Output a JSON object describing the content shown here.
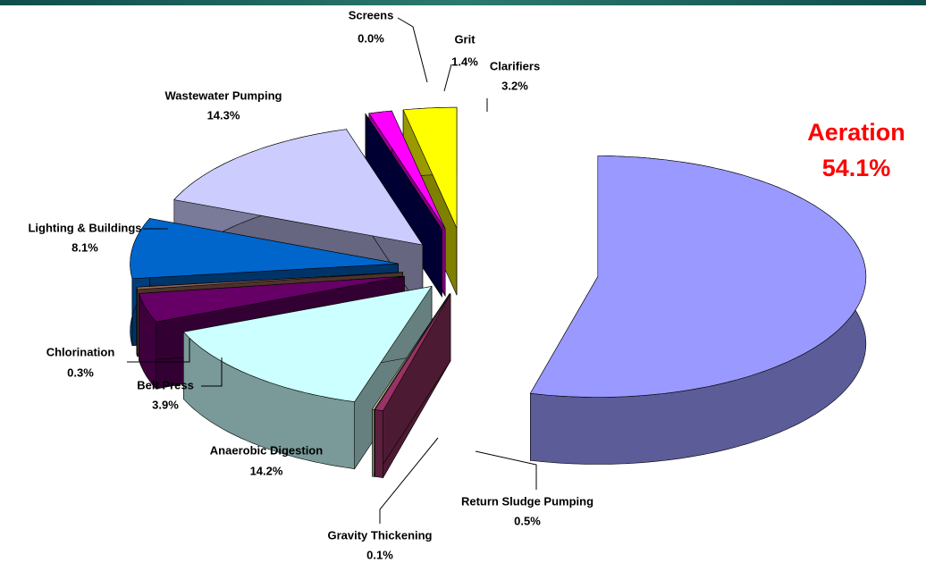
{
  "chart_data": {
    "type": "pie3d",
    "categories": [
      "Aeration",
      "Return Sludge Pumping",
      "Gravity Thickening",
      "Anaerobic Digestion",
      "Belt Press",
      "Chlorination",
      "Lighting & Buildings",
      "Wastewater Pumping",
      "Screens",
      "Grit",
      "Clarifiers"
    ],
    "values": [
      54.1,
      0.5,
      0.1,
      14.2,
      3.9,
      0.3,
      8.1,
      14.3,
      0.0,
      1.4,
      3.2
    ],
    "value_labels": [
      "54.1%",
      "0.5%",
      "0.1%",
      "14.2%",
      "3.9%",
      "0.3%",
      "8.1%",
      "14.3%",
      "0.0%",
      "1.4%",
      "3.2%"
    ],
    "colors": [
      "#9999ff",
      "#993366",
      "#ffffcc",
      "#ccffff",
      "#660066",
      "#996655",
      "#0066cc",
      "#ccccff",
      "#000066",
      "#ff00ff",
      "#ffff00"
    ]
  }
}
